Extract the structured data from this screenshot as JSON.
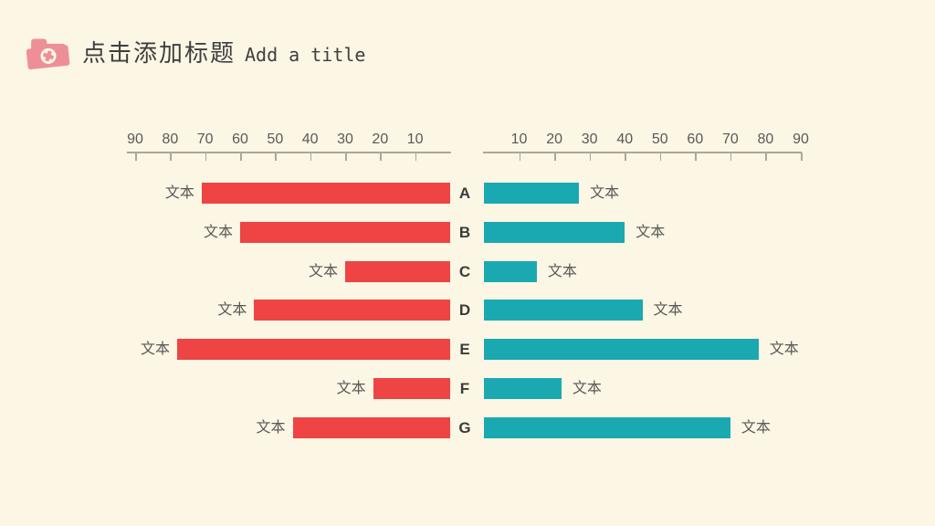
{
  "header": {
    "title_cn": "点击添加标题",
    "title_en": "Add a title",
    "icon": "folder-plus"
  },
  "colors": {
    "background": "#FCF6E4",
    "red": "#EE4444",
    "teal": "#1AA9B1",
    "icon_pink": "#EE8F98",
    "title_text": "#3F3F3F",
    "axis_line": "#ABA79B",
    "muted_text": "#595959",
    "category_text": "#3B3B3B"
  },
  "chart_data": {
    "type": "bar",
    "variant": "tornado-diverging-horizontal",
    "categories": [
      "A",
      "B",
      "C",
      "D",
      "E",
      "F",
      "G"
    ],
    "axis_range": [
      0,
      90
    ],
    "grid": false,
    "legend": "none",
    "series": [
      {
        "name": "left-red",
        "color": "#EE4444",
        "direction": "right-to-left",
        "axis_ticks": [
          90,
          80,
          70,
          60,
          50,
          40,
          30,
          20,
          10
        ],
        "values": [
          71,
          60,
          30,
          56,
          78,
          22,
          45
        ],
        "labels": [
          "文本",
          "文本",
          "文本",
          "文本",
          "文本",
          "文本",
          "文本"
        ]
      },
      {
        "name": "right-teal",
        "color": "#1AA9B1",
        "direction": "left-to-right",
        "axis_ticks": [
          10,
          20,
          30,
          40,
          50,
          60,
          70,
          80,
          90
        ],
        "values": [
          27,
          40,
          15,
          45,
          78,
          22,
          70
        ],
        "labels": [
          "文本",
          "文本",
          "文本",
          "文本",
          "文本",
          "文本",
          "文本"
        ]
      }
    ]
  }
}
